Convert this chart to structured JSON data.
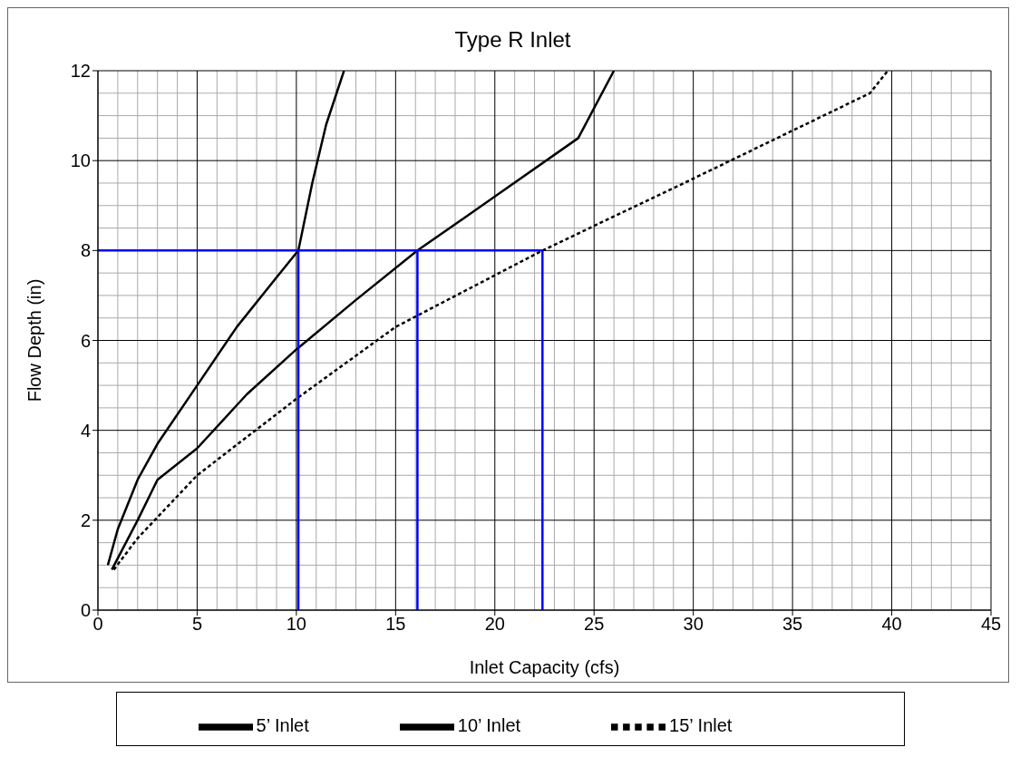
{
  "chart_data": {
    "type": "line",
    "title": "Type R Inlet",
    "xlabel": "Inlet Capacity (cfs)",
    "ylabel": "Flow Depth (in)",
    "xlim": [
      0,
      45
    ],
    "xticks": [
      0,
      5,
      10,
      15,
      20,
      25,
      30,
      35,
      40,
      45
    ],
    "ylim": [
      0,
      12
    ],
    "yticks": [
      0,
      2,
      4,
      6,
      8,
      10,
      12
    ],
    "grid": true,
    "legend": "bottom",
    "marker": "none",
    "series": [
      {
        "name": "5’ Inlet",
        "color": "#000000",
        "line_style": "solid",
        "x": [
          0.5,
          1,
          2,
          3,
          5,
          7,
          9,
          10.1,
          10.8,
          11.5,
          12.4
        ],
        "values": [
          1,
          1.8,
          2.9,
          3.7,
          5,
          6.3,
          7.4,
          8,
          9.5,
          10.8,
          12
        ]
      },
      {
        "name": "10’ Inlet",
        "color": "#000000",
        "line_style": "solid",
        "x": [
          0.7,
          2,
          3,
          5,
          7.5,
          10,
          13,
          16.1,
          20,
          24.2,
          26
        ],
        "values": [
          0.9,
          2,
          2.9,
          3.6,
          4.8,
          5.8,
          6.9,
          8,
          9.2,
          10.5,
          12
        ]
      },
      {
        "name": "15’ Inlet",
        "color": "#000000",
        "line_style": "dashed",
        "x": [
          0.8,
          2,
          5,
          10,
          15,
          22.4,
          30,
          38.9,
          39.8
        ],
        "values": [
          0.9,
          1.6,
          3,
          4.7,
          6.3,
          8,
          9.6,
          11.5,
          12
        ]
      },
      {
        "color": "#0000ff",
        "line_style": "solid",
        "x": [
          0,
          22.4
        ],
        "values": [
          8,
          8
        ]
      },
      {
        "color": "#0000ff",
        "line_style": "solid",
        "x": [
          10.1,
          10.1
        ],
        "values": [
          0,
          8
        ]
      },
      {
        "color": "#0000ff",
        "line_style": "solid",
        "x": [
          16.1,
          16.1
        ],
        "values": [
          0,
          8
        ]
      },
      {
        "color": "#0000ff",
        "line_style": "solid",
        "x": [
          22.4,
          22.4
        ],
        "values": [
          0,
          8
        ]
      }
    ]
  }
}
